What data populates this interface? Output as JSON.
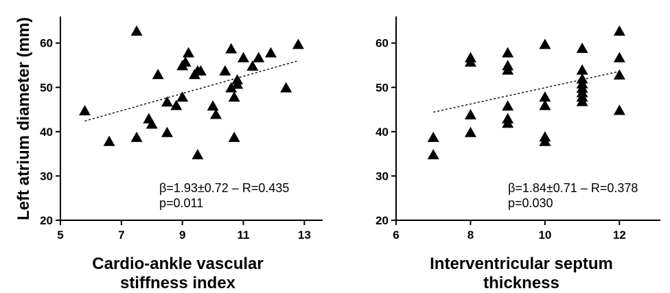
{
  "figure": {
    "ylabel": "Left atrium diameter (mm)"
  },
  "chart_data": [
    {
      "type": "scatter",
      "xlabel_lines": [
        "Cardio-ankle vascular",
        "stiffness index"
      ],
      "ylabel": "Left atrium diameter (mm)",
      "xlim": [
        5,
        13.6
      ],
      "ylim": [
        20,
        66
      ],
      "xticks": [
        5,
        7,
        9,
        11,
        13
      ],
      "yticks": [
        20,
        30,
        40,
        50,
        60
      ],
      "marker": "triangle",
      "marker_color": "#000000",
      "points": [
        [
          5.8,
          44.6
        ],
        [
          6.6,
          37.7
        ],
        [
          7.5,
          62.6
        ],
        [
          7.5,
          38.6
        ],
        [
          7.9,
          42.8
        ],
        [
          8.0,
          41.6
        ],
        [
          8.2,
          52.8
        ],
        [
          8.5,
          46.6
        ],
        [
          8.5,
          39.7
        ],
        [
          8.8,
          45.8
        ],
        [
          9.0,
          54.8
        ],
        [
          9.0,
          47.7
        ],
        [
          9.1,
          55.6
        ],
        [
          9.2,
          57.7
        ],
        [
          9.4,
          52.8
        ],
        [
          9.5,
          53.6
        ],
        [
          9.5,
          34.7
        ],
        [
          9.6,
          53.6
        ],
        [
          10.0,
          45.7
        ],
        [
          10.1,
          43.8
        ],
        [
          10.4,
          53.6
        ],
        [
          10.6,
          49.8
        ],
        [
          10.6,
          58.6
        ],
        [
          10.7,
          47.7
        ],
        [
          10.7,
          38.6
        ],
        [
          10.8,
          51.6
        ],
        [
          10.8,
          50.6
        ],
        [
          11.0,
          56.6
        ],
        [
          11.3,
          54.7
        ],
        [
          11.5,
          56.6
        ],
        [
          11.9,
          57.7
        ],
        [
          12.4,
          49.8
        ],
        [
          12.8,
          59.6
        ]
      ],
      "trendline": {
        "style": "dashed",
        "x": [
          5.8,
          12.8
        ],
        "y": [
          42.4,
          56.0
        ]
      },
      "annotations": [
        "β=1.93±0.72 – R=0.435",
        "p=0.011"
      ]
    },
    {
      "type": "scatter",
      "xlabel_lines": [
        "Interventricular septum",
        "thickness"
      ],
      "ylabel": "",
      "xlim": [
        6,
        13.1
      ],
      "ylim": [
        20,
        66
      ],
      "xticks": [
        6,
        8,
        10,
        12
      ],
      "yticks": [
        20,
        30,
        40,
        50,
        60
      ],
      "marker": "triangle",
      "marker_color": "#000000",
      "points": [
        [
          7,
          38.6
        ],
        [
          7,
          34.7
        ],
        [
          8,
          56.6
        ],
        [
          8,
          55.6
        ],
        [
          8,
          43.7
        ],
        [
          8,
          39.7
        ],
        [
          9,
          57.7
        ],
        [
          9,
          54.8
        ],
        [
          9,
          53.8
        ],
        [
          9,
          45.7
        ],
        [
          9,
          42.8
        ],
        [
          9,
          41.8
        ],
        [
          10,
          59.6
        ],
        [
          10,
          47.7
        ],
        [
          10,
          45.8
        ],
        [
          10,
          38.7
        ],
        [
          10,
          37.7
        ],
        [
          11,
          58.7
        ],
        [
          11,
          53.8
        ],
        [
          11,
          51.8
        ],
        [
          11,
          50.7
        ],
        [
          11,
          49.7
        ],
        [
          11,
          48.7
        ],
        [
          11,
          47.7
        ],
        [
          11,
          46.7
        ],
        [
          12,
          62.6
        ],
        [
          12,
          56.6
        ],
        [
          12,
          52.7
        ],
        [
          12,
          44.7
        ]
      ],
      "trendline": {
        "style": "dashed",
        "x": [
          7,
          12
        ],
        "y": [
          44.4,
          53.6
        ]
      },
      "annotations": [
        "β=1.84±0.71 – R=0.378",
        "p=0.030"
      ]
    }
  ]
}
